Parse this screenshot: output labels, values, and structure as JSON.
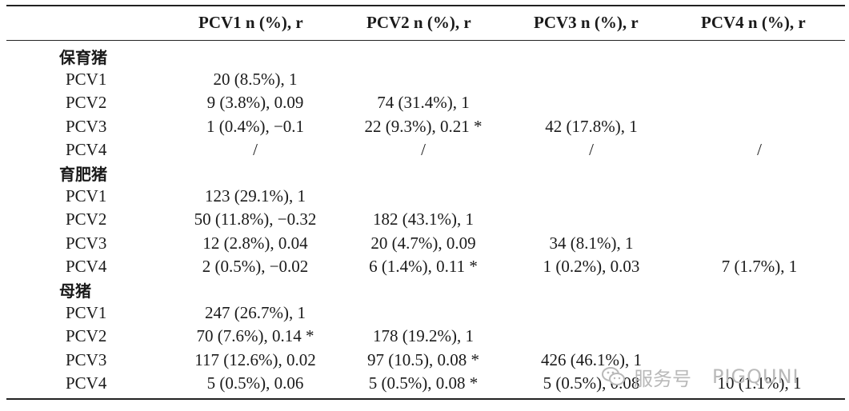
{
  "table": {
    "headers": [
      "PCV1 n (%), r",
      "PCV2 n (%), r",
      "PCV3 n (%), r",
      "PCV4 n (%), r"
    ],
    "groups": [
      {
        "name": "保育猪",
        "rows": [
          {
            "label": "PCV1",
            "cells": [
              "20 (8.5%), 1",
              "",
              "",
              ""
            ]
          },
          {
            "label": "PCV2",
            "cells": [
              "9 (3.8%), 0.09",
              "74 (31.4%), 1",
              "",
              ""
            ]
          },
          {
            "label": "PCV3",
            "cells": [
              "1 (0.4%), −0.1",
              "22 (9.3%), 0.21 *",
              "42 (17.8%), 1",
              ""
            ]
          },
          {
            "label": "PCV4",
            "cells": [
              "/",
              "/",
              "/",
              "/"
            ]
          }
        ]
      },
      {
        "name": "育肥猪",
        "rows": [
          {
            "label": "PCV1",
            "cells": [
              "123 (29.1%), 1",
              "",
              "",
              ""
            ]
          },
          {
            "label": "PCV2",
            "cells": [
              "50 (11.8%), −0.32",
              "182 (43.1%), 1",
              "",
              ""
            ]
          },
          {
            "label": "PCV3",
            "cells": [
              "12 (2.8%), 0.04",
              "20 (4.7%), 0.09",
              "34 (8.1%), 1",
              ""
            ]
          },
          {
            "label": "PCV4",
            "cells": [
              "2 (0.5%), −0.02",
              "6 (1.4%), 0.11 *",
              "1 (0.2%), 0.03",
              "7 (1.7%), 1"
            ]
          }
        ]
      },
      {
        "name": "母猪",
        "rows": [
          {
            "label": "PCV1",
            "cells": [
              "247 (26.7%), 1",
              "",
              "",
              ""
            ]
          },
          {
            "label": "PCV2",
            "cells": [
              "70 (7.6%), 0.14 *",
              "178 (19.2%), 1",
              "",
              ""
            ]
          },
          {
            "label": "PCV3",
            "cells": [
              "117 (12.6%), 0.02",
              "97 (10.5), 0.08 *",
              "426 (46.1%), 1",
              ""
            ]
          },
          {
            "label": "PCV4",
            "cells": [
              "5 (0.5%), 0.06",
              "5 (0.5%), 0.08 *",
              "5 (0.5%), 0.08",
              "10 (1.1%), 1"
            ]
          }
        ]
      }
    ]
  },
  "watermark": {
    "icon": "wechat-icon",
    "text_cn": "服务号",
    "text_en": "PIGQUNI",
    "color": "#b9b9b9"
  }
}
